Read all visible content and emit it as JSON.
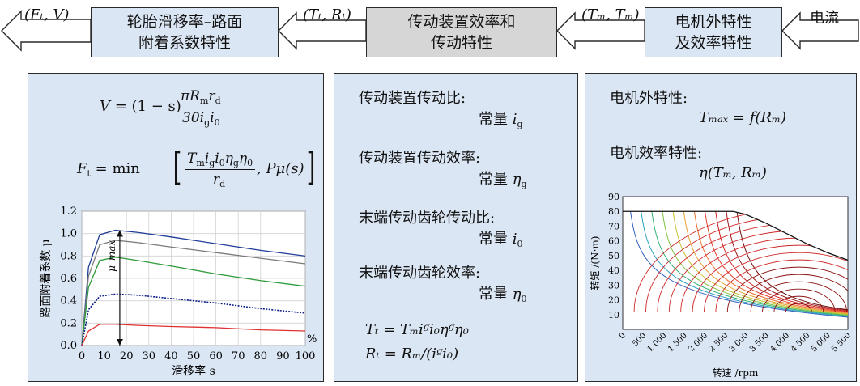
{
  "top": {
    "out_signal": "(Fₜ, V)",
    "box_tyre": "轮胎滑移率–路面\n附着系数特性",
    "sig_trans": "(Tₜ, Rₜ)",
    "box_trans": "传动装置效率和\n传动特性",
    "sig_motor": "(Tₘ, Tₘ)",
    "box_motor": "电机外特性\n及效率特性",
    "in_signal": "电流"
  },
  "left_panel": {
    "eq1_lhs": "V",
    "eq1_rhs": "= (1 − s)",
    "eq1_num": "πR",
    "eq1_num_sub": "m",
    "eq1_num_tail": "r",
    "eq1_num_tail_sub": "d",
    "eq1_den": "30i",
    "eq1_den_sub1": "g",
    "eq1_den_mid": "i",
    "eq1_den_sub2": "0",
    "eq2_lhs": "F",
    "eq2_lhs_sub": "t",
    "eq2_eq": "= min",
    "eq2_num": "T",
    "eq2_num_rest": "i",
    "eq2_den": "r",
    "eq2_den_sub": "d",
    "eq2_tail": ", Pμ(s)"
  },
  "mid_panel": {
    "l1": "传动装置传动比:",
    "v1": "常量 ",
    "v1_sym": "i",
    "v1_sub": "g",
    "l2": "传动装置传动效率:",
    "v2": "常量 ",
    "v2_sym": "η",
    "v2_sub": "g",
    "l3": "末端传动齿轮传动比:",
    "v3": "常量 ",
    "v3_sym": "i",
    "v3_sub": "0",
    "l4": "末端传动齿轮效率:",
    "v4": "常量 ",
    "v4_sym": "η",
    "v4_sub": "0",
    "f1": "Tₜ = Tₘiᵍi₀ηᵍη₀",
    "f2": "Rₜ = Rₘ/(iᵍi₀)"
  },
  "right_panel": {
    "l1": "电机外特性:",
    "f1": "Tₘₐₓ = f(Rₘ)",
    "l2": "电机效率特性:",
    "f2": "η(Tₘ, Rₘ)"
  },
  "colors": {
    "box_blue": "#dbe6f4",
    "box_gray": "#d6d6d6",
    "curve_blue": "#1f3d99",
    "curve_gray": "#7a7a7a",
    "curve_green": "#2e9a3a",
    "curve_navy": "#10208a",
    "curve_red": "#e03030"
  },
  "chart_data": [
    {
      "type": "line",
      "xlabel": "滑移率 s",
      "ylabel": "路面附着系数 μ",
      "x_unit": "%",
      "xlim": [
        0,
        100
      ],
      "ylim": [
        0,
        1.2
      ],
      "xticks": [
        0,
        10,
        20,
        30,
        40,
        50,
        60,
        70,
        80,
        90,
        100
      ],
      "yticks": [
        0,
        0.2,
        0.4,
        0.6,
        0.8,
        1.0,
        1.2
      ],
      "grid": true,
      "annotation": "μ_max",
      "annotation_x": 17,
      "series": [
        {
          "color": "#1f3d99",
          "x": [
            0,
            3,
            8,
            15,
            25,
            40,
            60,
            80,
            100
          ],
          "y": [
            0,
            0.7,
            0.99,
            1.03,
            1.01,
            0.97,
            0.91,
            0.85,
            0.8
          ]
        },
        {
          "color": "#7a7a7a",
          "x": [
            0,
            3,
            8,
            15,
            25,
            40,
            60,
            80,
            100
          ],
          "y": [
            0,
            0.62,
            0.9,
            0.94,
            0.92,
            0.88,
            0.83,
            0.78,
            0.73
          ]
        },
        {
          "color": "#2e9a3a",
          "x": [
            0,
            3,
            8,
            15,
            25,
            40,
            60,
            80,
            100
          ],
          "y": [
            0,
            0.52,
            0.76,
            0.79,
            0.76,
            0.71,
            0.64,
            0.58,
            0.53
          ]
        },
        {
          "color": "#10208a",
          "dotted": true,
          "x": [
            0,
            3,
            8,
            15,
            25,
            40,
            60,
            80,
            100
          ],
          "y": [
            0,
            0.32,
            0.44,
            0.46,
            0.45,
            0.42,
            0.38,
            0.33,
            0.29
          ]
        },
        {
          "color": "#e03030",
          "x": [
            0,
            3,
            8,
            15,
            25,
            40,
            60,
            80,
            100
          ],
          "y": [
            0,
            0.13,
            0.19,
            0.19,
            0.18,
            0.17,
            0.16,
            0.14,
            0.13
          ]
        }
      ]
    },
    {
      "type": "contour",
      "xlabel": "转速 /rpm",
      "ylabel": "转矩 /(N·m)",
      "xlim": [
        0,
        5500
      ],
      "ylim": [
        0,
        90
      ],
      "xticks": [
        "0",
        "500",
        "1 000",
        "1 500",
        "2 000",
        "2 500",
        "3 000",
        "3 500",
        "4 000",
        "4 500",
        "5 000",
        "5 500"
      ],
      "yticks": [
        10,
        20,
        30,
        40,
        50,
        60,
        70,
        80,
        90
      ],
      "max_torque_curve": {
        "x": [
          0,
          2700,
          3000,
          3500,
          4000,
          4500,
          5000,
          5500
        ],
        "y": [
          80,
          80,
          78,
          72,
          65,
          58,
          52,
          47
        ]
      }
    }
  ]
}
